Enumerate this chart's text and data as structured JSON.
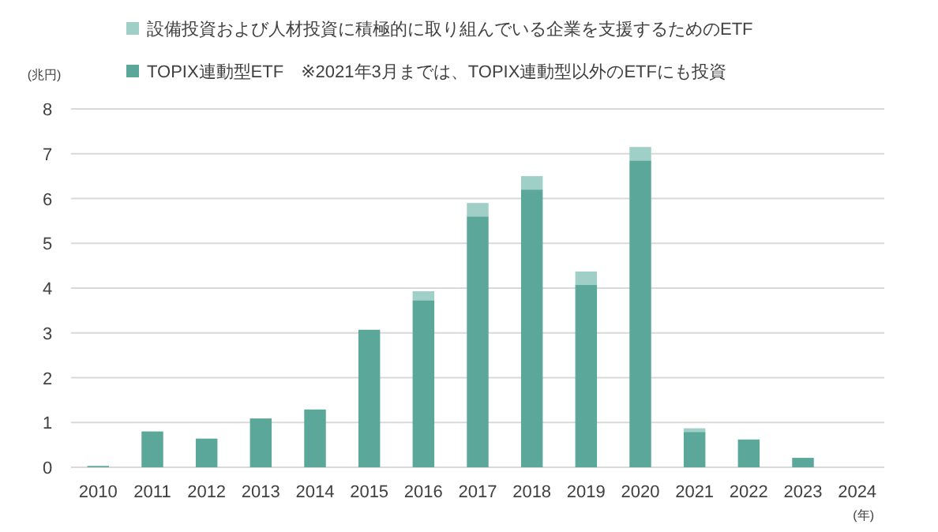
{
  "chart_data": {
    "type": "bar",
    "stacked": true,
    "ylabel": "(兆円)",
    "xlabel": "(年)",
    "categories": [
      "2010",
      "2011",
      "2012",
      "2013",
      "2014",
      "2015",
      "2016",
      "2017",
      "2018",
      "2019",
      "2020",
      "2021",
      "2022",
      "2023",
      "2024"
    ],
    "series": [
      {
        "name": "TOPIX連動型ETF　※2021年3月までは、TOPIX連動型以外のETFにも投資",
        "color": "#5ba89b",
        "values": [
          0.03,
          0.8,
          0.64,
          1.09,
          1.29,
          3.07,
          3.73,
          5.6,
          6.2,
          4.07,
          6.85,
          0.79,
          0.62,
          0.21,
          null
        ]
      },
      {
        "name": "設備投資および人材投資に積極的に取り組んでいる企業を支援するためのETF",
        "color": "#9fcfc6",
        "values": [
          null,
          null,
          null,
          null,
          null,
          null,
          0.2,
          0.3,
          0.3,
          0.3,
          0.3,
          0.08,
          null,
          null,
          null
        ]
      }
    ],
    "ylim": [
      0,
      8
    ],
    "yticks": [
      0,
      1,
      2,
      3,
      4,
      5,
      6,
      7,
      8
    ],
    "grid": "y",
    "legend": "top"
  }
}
